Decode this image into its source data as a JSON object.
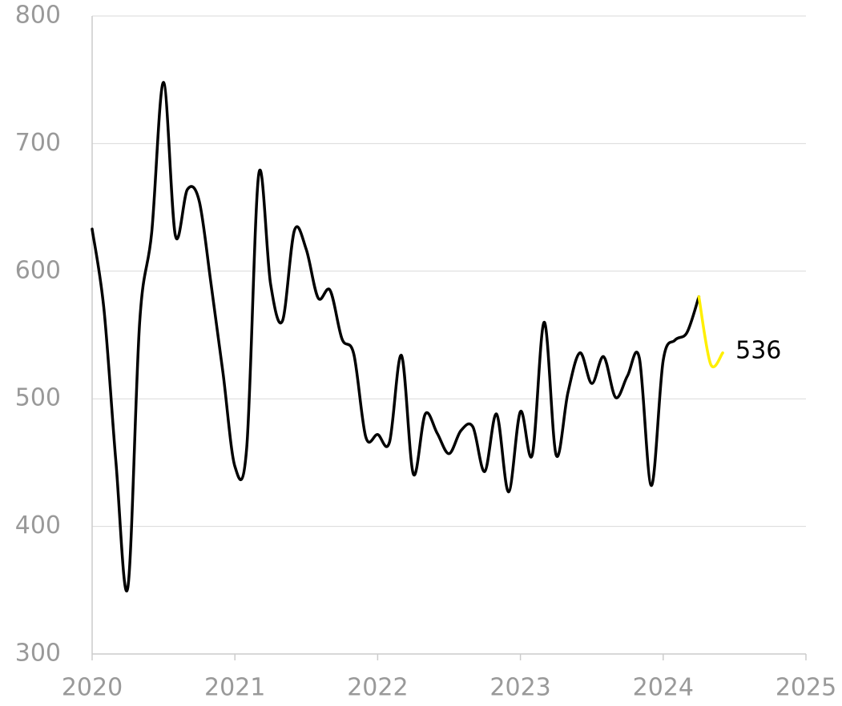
{
  "chart_data": {
    "type": "line",
    "x": [
      2020,
      2020.083,
      2020.167,
      2020.25,
      2020.333,
      2020.417,
      2020.5,
      2020.583,
      2020.667,
      2020.75,
      2020.833,
      2020.917,
      2021,
      2021.083,
      2021.167,
      2021.25,
      2021.333,
      2021.417,
      2021.5,
      2021.583,
      2021.667,
      2021.75,
      2021.833,
      2021.917,
      2022,
      2022.083,
      2022.167,
      2022.25,
      2022.333,
      2022.417,
      2022.5,
      2022.583,
      2022.667,
      2022.75,
      2022.833,
      2022.917,
      2023,
      2023.083,
      2023.167,
      2023.25,
      2023.333,
      2023.417,
      2023.5,
      2023.583,
      2023.667,
      2023.75,
      2023.833,
      2023.917,
      2024,
      2024.083,
      2024.167,
      2024.25,
      2024.333,
      2024.417
    ],
    "series": [
      {
        "color": "#000000",
        "values": [
          633,
          570,
          450,
          352,
          560,
          630,
          748,
          628,
          664,
          655,
          590,
          520,
          447,
          462,
          676,
          590,
          561,
          632,
          617,
          579,
          585,
          547,
          535,
          470,
          472,
          466,
          534,
          441,
          488,
          473,
          457,
          475,
          478,
          443,
          488,
          427,
          490,
          456,
          560,
          456,
          505,
          536,
          512,
          533,
          501,
          518,
          532,
          432,
          530,
          546,
          552,
          580,
          null,
          null
        ]
      },
      {
        "color": "#ffef00",
        "values": [
          null,
          null,
          null,
          null,
          null,
          null,
          null,
          null,
          null,
          null,
          null,
          null,
          null,
          null,
          null,
          null,
          null,
          null,
          null,
          null,
          null,
          null,
          null,
          null,
          null,
          null,
          null,
          null,
          null,
          null,
          null,
          null,
          null,
          null,
          null,
          null,
          null,
          null,
          null,
          null,
          null,
          null,
          null,
          null,
          null,
          null,
          null,
          null,
          null,
          null,
          null,
          580,
          527,
          536
        ]
      }
    ],
    "xlim": [
      2020,
      2025
    ],
    "xticks": [
      2020,
      2021,
      2022,
      2023,
      2024,
      2025
    ],
    "ylim": [
      300,
      800
    ],
    "yticks": [
      300,
      400,
      500,
      600,
      700,
      800
    ],
    "grid": true
  }
}
